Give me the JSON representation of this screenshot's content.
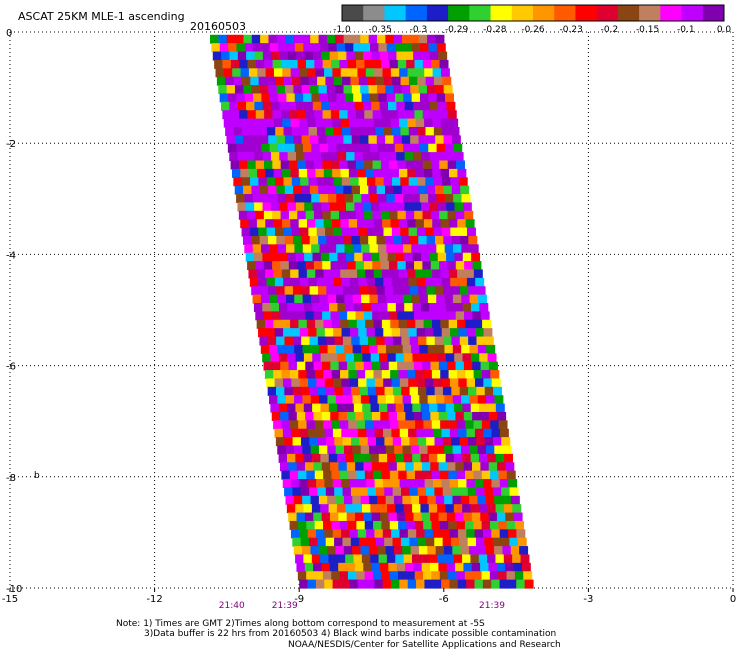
{
  "header": {
    "title": "ASCAT 25KM MLE-1 ascending",
    "date": "20160503"
  },
  "colorbar": {
    "colors": [
      "#4a4a4a",
      "#8c8c8c",
      "#00c8ff",
      "#0064ff",
      "#1e1ec8",
      "#00a000",
      "#30d030",
      "#ffff00",
      "#ffc800",
      "#ff9600",
      "#ff5a00",
      "#ff0000",
      "#e00030",
      "#8b4513",
      "#c08060",
      "#ff00ff",
      "#c000ff",
      "#8000b0"
    ],
    "labels": [
      "-1.0",
      "-0.35",
      "-0.3",
      "-0.29",
      "-0.28",
      "-0.26",
      "-0.23",
      "-0.2",
      "-0.15",
      "-0.1",
      "0.0"
    ]
  },
  "chart_data": {
    "type": "heatmap",
    "title": "ASCAT 25KM MLE-1 ascending",
    "subtitle": "20160503",
    "xlim": [
      -15,
      0
    ],
    "ylim": [
      -10,
      0
    ],
    "xticks": [
      "-15",
      "-12",
      "-9",
      "-6",
      "-3",
      "0"
    ],
    "yticks": [
      "0",
      "-2",
      "-4",
      "-6",
      "-8",
      "-10"
    ],
    "time_labels": [
      {
        "x": -10.4,
        "label": "21:40"
      },
      {
        "x": -9.3,
        "label": "21:39"
      },
      {
        "x": -5.0,
        "label": "21:39"
      }
    ],
    "swath": {
      "top_left_x": -10.85,
      "top_right_x": -6.0,
      "bottom_left_x": -9.0,
      "bottom_right_x": -4.15,
      "y_top": -0.05,
      "y_bottom": -10.0
    },
    "note_symbol": "b"
  },
  "footer": {
    "note_line1": "Note: 1) Times are GMT 2)Times along bottom correspond to measurement at -5S",
    "note_line2": "3)Data buffer is 22 hrs from 20160503 4) Black wind barbs indicate possible contamination",
    "note_line3": "NOAA/NESDIS/Center for Satellite Applications and Research"
  }
}
